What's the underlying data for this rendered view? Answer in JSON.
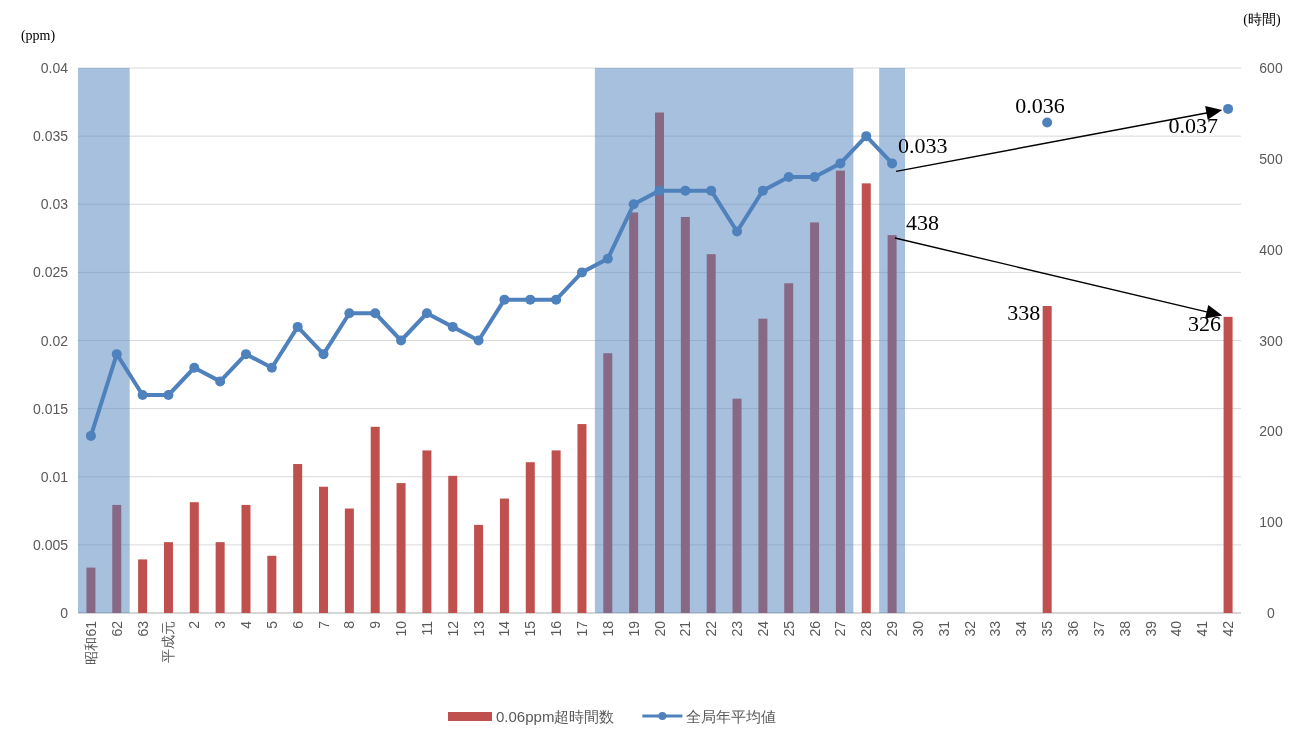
{
  "chart_data": {
    "type": "bar",
    "ylabel": "(ppm)",
    "y2label": "(時間)",
    "categories": [
      "昭和61",
      "62",
      "63",
      "平成元",
      "2",
      "3",
      "4",
      "5",
      "6",
      "7",
      "8",
      "9",
      "10",
      "11",
      "12",
      "13",
      "14",
      "15",
      "16",
      "17",
      "18",
      "19",
      "20",
      "21",
      "22",
      "23",
      "24",
      "25",
      "26",
      "27",
      "28",
      "29",
      "30",
      "31",
      "32",
      "33",
      "34",
      "35",
      "36",
      "37",
      "38",
      "39",
      "40",
      "41",
      "42"
    ],
    "series": [
      {
        "name": "0.06ppm超時間数",
        "axis": "y2",
        "color": "#c0504d",
        "values": [
          50,
          119,
          59,
          78,
          122,
          78,
          119,
          63,
          164,
          139,
          115,
          205,
          143,
          179,
          151,
          97,
          126,
          166,
          179,
          208,
          286,
          441,
          551,
          436,
          395,
          236,
          324,
          363,
          430,
          487,
          473,
          416,
          null,
          null,
          null,
          null,
          null,
          338,
          null,
          null,
          null,
          null,
          null,
          null,
          326
        ],
        "value_labels": [
          null,
          null,
          null,
          null,
          null,
          null,
          null,
          null,
          null,
          null,
          null,
          null,
          null,
          null,
          null,
          null,
          null,
          null,
          null,
          null,
          null,
          null,
          null,
          null,
          null,
          null,
          null,
          null,
          null,
          null,
          null,
          null,
          null,
          null,
          null,
          null,
          null,
          "338",
          null,
          null,
          null,
          null,
          null,
          null,
          "326"
        ]
      },
      {
        "name": "全局年平均値",
        "type": "line",
        "color": "#4f81bd",
        "marker": "circle",
        "values": [
          0.013,
          0.019,
          0.016,
          0.016,
          0.018,
          0.017,
          0.019,
          0.018,
          0.021,
          0.019,
          0.022,
          0.022,
          0.02,
          0.022,
          0.021,
          0.02,
          0.023,
          0.023,
          0.023,
          0.025,
          0.026,
          0.03,
          0.031,
          0.031,
          0.031,
          0.028,
          0.031,
          0.032,
          0.032,
          0.033,
          0.035,
          0.033,
          null,
          null,
          null,
          null,
          null,
          0.036,
          null,
          null,
          null,
          null,
          null,
          null,
          0.037
        ],
        "value_labels": [
          null,
          null,
          null,
          null,
          null,
          null,
          null,
          null,
          null,
          null,
          null,
          null,
          null,
          null,
          null,
          null,
          null,
          null,
          null,
          null,
          null,
          null,
          null,
          null,
          null,
          null,
          null,
          null,
          null,
          null,
          null,
          "0.033",
          null,
          null,
          null,
          null,
          null,
          "0.036",
          null,
          null,
          null,
          null,
          null,
          null,
          "0.037"
        ]
      }
    ],
    "ylim": [
      0,
      0.04
    ],
    "yticks": [
      0,
      0.005,
      0.01,
      0.015,
      0.02,
      0.025,
      0.03,
      0.035,
      0.04
    ],
    "y2lim": [
      0,
      600
    ],
    "y2ticks": [
      0,
      100,
      200,
      300,
      400,
      500,
      600
    ],
    "bands": [
      {
        "axis": "x",
        "from": "昭和61",
        "to": "62",
        "color": "#4f81bd"
      },
      {
        "axis": "x",
        "from": "18",
        "to": "27",
        "color": "#4f81bd"
      },
      {
        "axis": "x",
        "from": "29",
        "to": "29",
        "color": "#4f81bd"
      }
    ],
    "annotations": [
      "438"
    ],
    "grid": "y",
    "legend": "bottom"
  }
}
